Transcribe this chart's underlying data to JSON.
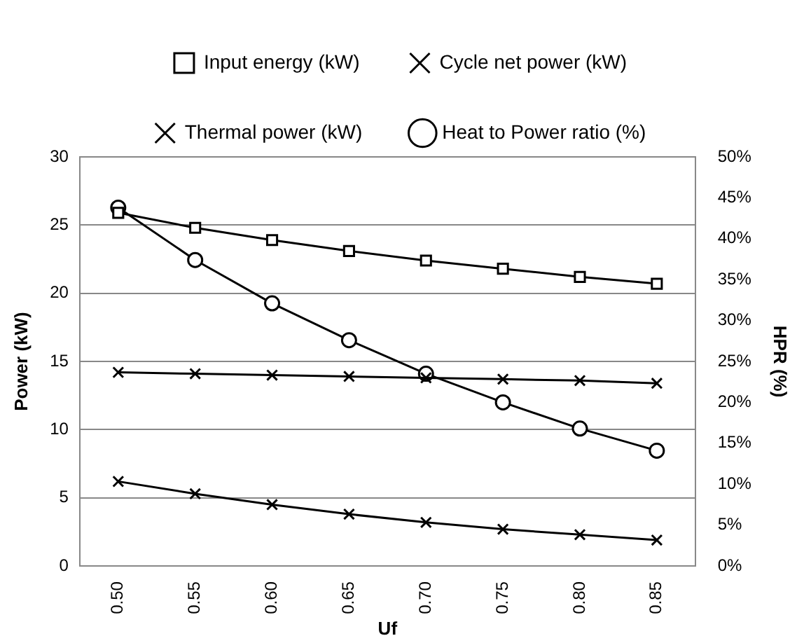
{
  "chart_data": {
    "type": "line",
    "xlabel": "Uf",
    "ylabel": "Power (kW)",
    "y2label": "HPR (%)",
    "categories": [
      "0.50",
      "0.55",
      "0.60",
      "0.65",
      "0.70",
      "0.75",
      "0.80",
      "0.85"
    ],
    "series": [
      {
        "name": "Input energy (kW)",
        "color": "#000000",
        "marker": "square",
        "values": [
          25.9,
          24.8,
          23.9,
          23.1,
          22.4,
          21.8,
          21.2,
          20.7
        ]
      },
      {
        "name": "Cycle net power (kW)",
        "color": "#000000",
        "marker": "cross",
        "values": [
          14.2,
          14.1,
          14.0,
          13.9,
          13.8,
          13.7,
          13.6,
          13.4
        ]
      },
      {
        "name": "Thermal power (kW)",
        "color": "#000000",
        "marker": "cross",
        "values": [
          6.2,
          5.3,
          4.5,
          3.8,
          3.2,
          2.7,
          2.3,
          1.9
        ]
      },
      {
        "name": "Heat to Power ratio (%)",
        "color": "#000000",
        "marker": "circle",
        "axis": "y2",
        "values": [
          43.8,
          37.4,
          32.1,
          27.6,
          23.5,
          20.0,
          16.8,
          14.1
        ]
      }
    ],
    "ylim": [
      0,
      30
    ],
    "yticks": [
      0,
      5,
      10,
      15,
      20,
      25,
      30
    ],
    "y2lim": [
      0,
      50
    ],
    "y2ticks": [
      {
        "value": 0,
        "label": "0%"
      },
      {
        "value": 5,
        "label": "5%"
      },
      {
        "value": 10,
        "label": "10%"
      },
      {
        "value": 15,
        "label": "15%"
      },
      {
        "value": 20,
        "label": "20%"
      },
      {
        "value": 25,
        "label": "25%"
      },
      {
        "value": 30,
        "label": "30%"
      },
      {
        "value": 35,
        "label": "35%"
      },
      {
        "value": 40,
        "label": "40%"
      },
      {
        "value": 45,
        "label": "45%"
      },
      {
        "value": 50,
        "label": "50%"
      }
    ],
    "grid": "y",
    "legend": "top",
    "line_style": "solid"
  }
}
